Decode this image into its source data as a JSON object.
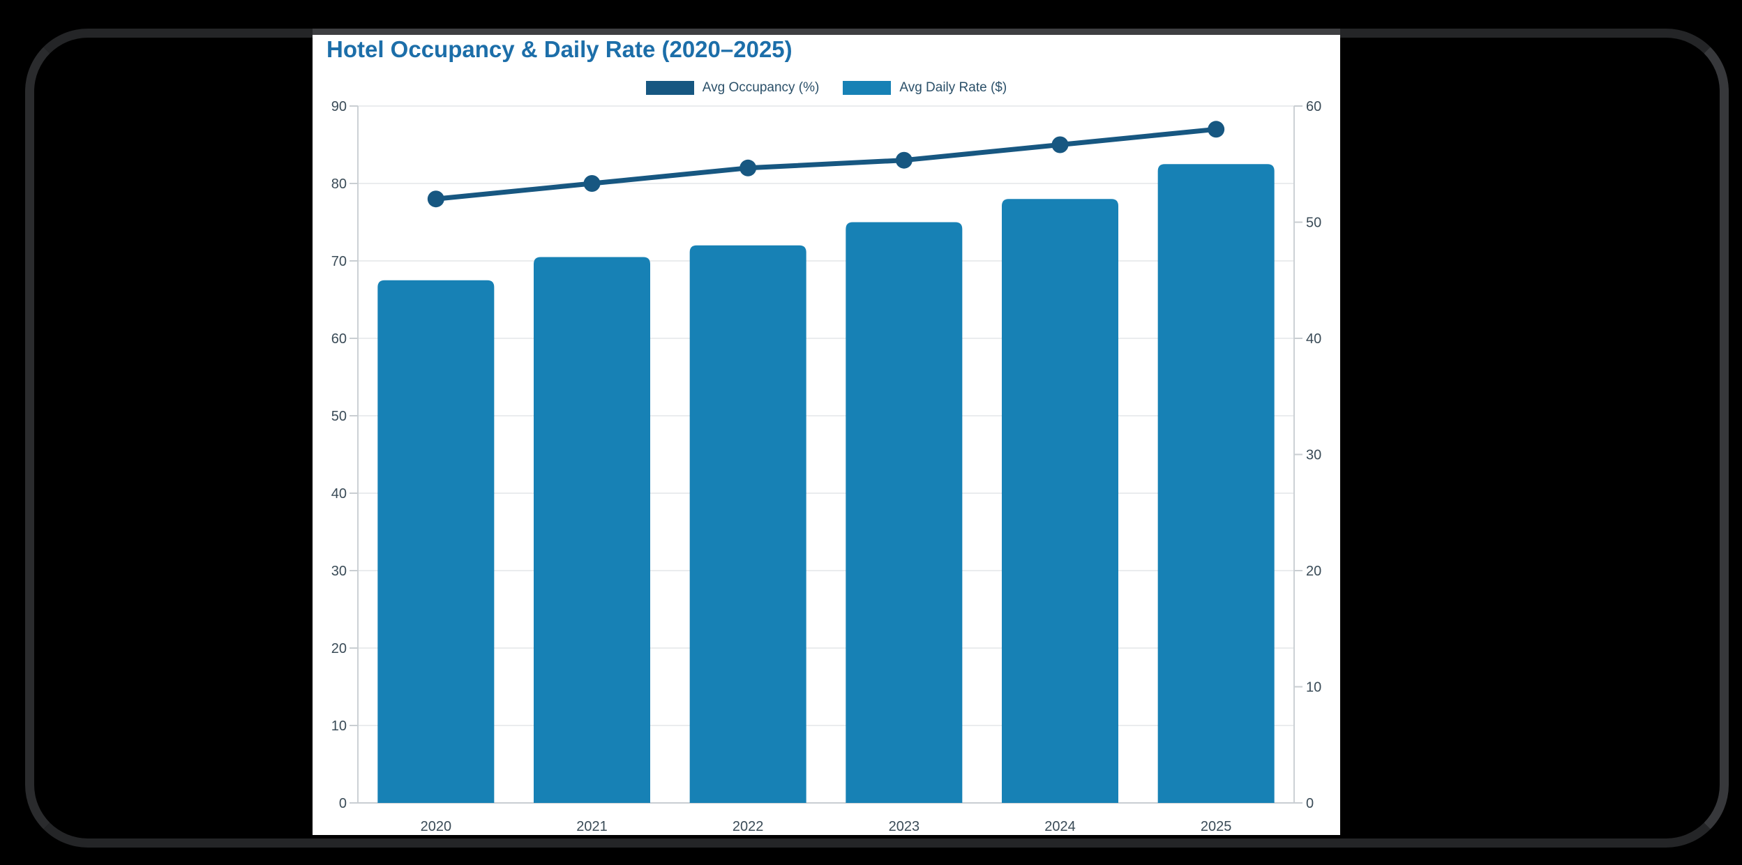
{
  "page": {
    "canvas_background": "#000000",
    "panel_background": "#ffffff",
    "frame_color": "#2a2b2d"
  },
  "chart_data": {
    "type": "combo",
    "title": "Hotel Occupancy & Daily Rate (2020–2025)",
    "categories": [
      "2020",
      "2021",
      "2022",
      "2023",
      "2024",
      "2025"
    ],
    "series": [
      {
        "name": "Avg Occupancy (%)",
        "type": "line",
        "axis": "left",
        "values": [
          78,
          80,
          82,
          83,
          85,
          87
        ],
        "color": "#175781"
      },
      {
        "name": "Avg Daily Rate ($)",
        "type": "bar",
        "axis": "right",
        "values": [
          45,
          47,
          48,
          50,
          52,
          55
        ],
        "color": "#1781b5"
      }
    ],
    "left_axis": {
      "min": 0,
      "max": 90,
      "step": 10,
      "ticks": [
        0,
        10,
        20,
        30,
        40,
        50,
        60,
        70,
        80,
        90
      ]
    },
    "right_axis": {
      "min": 0,
      "max": 60,
      "step": 10,
      "ticks": [
        0,
        10,
        20,
        30,
        40,
        50,
        60
      ]
    },
    "grid": true,
    "legend_position": "top",
    "colors": {
      "title_text": "#1c6ea9",
      "axis_text": "#3a4b57",
      "legend_text": "#2b5069",
      "gridline": "#eaecee",
      "axis_line": "#ccd1d5"
    }
  }
}
